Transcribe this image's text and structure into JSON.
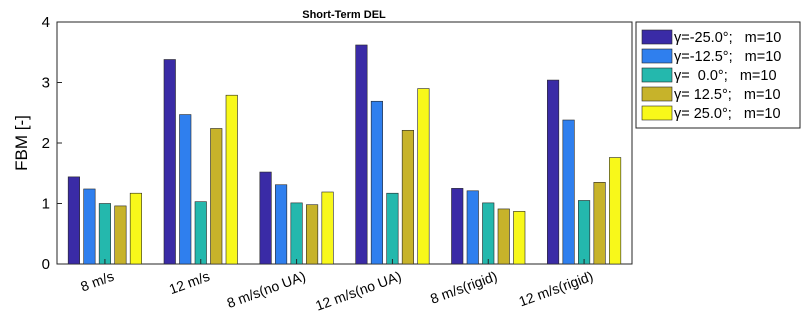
{
  "chart_data": {
    "type": "bar",
    "title": "Short-Term DEL",
    "xlabel": "",
    "ylabel": "FBM [-]",
    "ylim": [
      0,
      4
    ],
    "yticks": [
      0,
      1,
      2,
      3,
      4
    ],
    "grid": false,
    "legend_position": "outside-right",
    "categories": [
      "8 m/s",
      "12 m/s",
      "8 m/s(no UA)",
      "12 m/s(no UA)",
      "8 m/s(rigid)",
      "12 m/s(rigid)"
    ],
    "series": [
      {
        "name": "γ=-25.0°;   m=10",
        "color": "#3a2ba6",
        "values": [
          1.44,
          3.38,
          1.52,
          3.62,
          1.25,
          3.04
        ]
      },
      {
        "name": "γ=-12.5°;   m=10",
        "color": "#2f7fee",
        "values": [
          1.24,
          2.47,
          1.31,
          2.69,
          1.21,
          2.38
        ]
      },
      {
        "name": "γ=  0.0°;   m=10",
        "color": "#24b8ad",
        "values": [
          1.0,
          1.03,
          1.01,
          1.17,
          1.01,
          1.05
        ]
      },
      {
        "name": "γ= 12.5°;   m=10",
        "color": "#c7b32a",
        "values": [
          0.96,
          2.24,
          0.98,
          2.21,
          0.91,
          1.35
        ]
      },
      {
        "name": "γ= 25.0°;   m=10",
        "color": "#f8f81a",
        "values": [
          1.17,
          2.79,
          1.19,
          2.9,
          0.87,
          1.76
        ]
      }
    ]
  }
}
